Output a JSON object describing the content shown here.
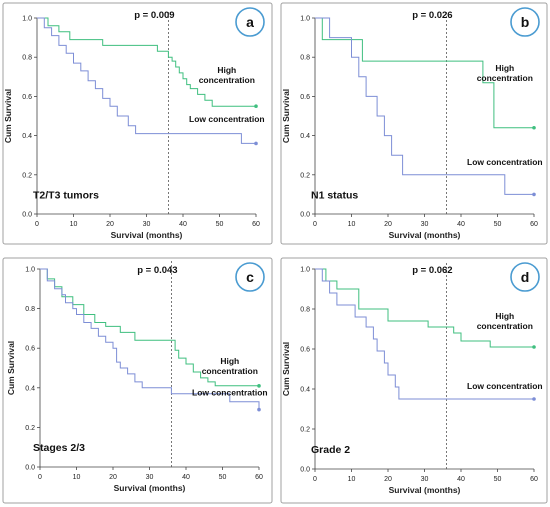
{
  "chart_data": [
    {
      "type": "line",
      "panel_letter": "a",
      "subgroup": "T2/T3 tumors",
      "p_value": "p = 0.009",
      "xlabel": "Survival (months)",
      "ylabel": "Cum Survival",
      "xlim": [
        0,
        60
      ],
      "ylim": [
        0,
        1
      ],
      "xticks": [
        0,
        10,
        20,
        30,
        40,
        50,
        60
      ],
      "yticks": [
        0.0,
        0.2,
        0.4,
        0.6,
        0.8,
        1.0
      ],
      "reference_line_x": 36,
      "series": [
        {
          "name": "High concentration",
          "color": "#3fbf7f",
          "x": [
            0,
            3,
            6,
            9,
            12,
            15,
            18,
            21,
            24,
            27,
            30,
            33,
            36,
            37,
            38,
            39,
            40,
            41,
            42,
            44,
            46,
            48,
            60
          ],
          "y": [
            1.0,
            0.96,
            0.93,
            0.89,
            0.89,
            0.89,
            0.86,
            0.86,
            0.86,
            0.86,
            0.86,
            0.83,
            0.8,
            0.78,
            0.75,
            0.72,
            0.69,
            0.66,
            0.64,
            0.61,
            0.58,
            0.55,
            0.55
          ],
          "label_lines": [
            "High",
            "concentration"
          ]
        },
        {
          "name": "Low concentration",
          "color": "#7d8ed6",
          "x": [
            0,
            2,
            4,
            6,
            8,
            10,
            12,
            14,
            16,
            18,
            20,
            22,
            25,
            27,
            36,
            50,
            56,
            60
          ],
          "y": [
            1.0,
            0.95,
            0.91,
            0.86,
            0.82,
            0.77,
            0.73,
            0.68,
            0.64,
            0.59,
            0.55,
            0.5,
            0.45,
            0.41,
            0.41,
            0.41,
            0.36,
            0.36
          ],
          "label_lines": [
            "Low concentration"
          ]
        }
      ]
    },
    {
      "type": "line",
      "panel_letter": "b",
      "subgroup": "N1 status",
      "p_value": "p = 0.026",
      "xlabel": "Survival (months)",
      "ylabel": "Cum Survival",
      "xlim": [
        0,
        60
      ],
      "ylim": [
        0,
        1
      ],
      "xticks": [
        0,
        10,
        20,
        30,
        40,
        50,
        60
      ],
      "yticks": [
        0.0,
        0.2,
        0.4,
        0.6,
        0.8,
        1.0
      ],
      "reference_line_x": 36,
      "series": [
        {
          "name": "High concentration",
          "color": "#3fbf7f",
          "x": [
            0,
            2,
            10,
            13,
            40,
            46,
            49,
            60
          ],
          "y": [
            1.0,
            0.89,
            0.89,
            0.78,
            0.78,
            0.67,
            0.44,
            0.44
          ],
          "label_lines": [
            "High",
            "concentration"
          ]
        },
        {
          "name": "Low concentration",
          "color": "#7d8ed6",
          "x": [
            0,
            4,
            10,
            12,
            14,
            17,
            19,
            21,
            24,
            52,
            60
          ],
          "y": [
            1.0,
            0.9,
            0.8,
            0.7,
            0.6,
            0.5,
            0.4,
            0.3,
            0.2,
            0.1,
            0.1
          ],
          "label_lines": [
            "Low concentration"
          ]
        }
      ]
    },
    {
      "type": "line",
      "panel_letter": "c",
      "subgroup": "Stages 2/3",
      "p_value": "p = 0.043",
      "xlabel": "Survival (months)",
      "ylabel": "Cum Survival",
      "xlim": [
        0,
        60
      ],
      "ylim": [
        0,
        1
      ],
      "xticks": [
        0,
        10,
        20,
        30,
        40,
        50,
        60
      ],
      "yticks": [
        0.0,
        0.2,
        0.4,
        0.6,
        0.8,
        1.0
      ],
      "reference_line_x": 36,
      "series": [
        {
          "name": "High concentration",
          "color": "#3fbf7f",
          "x": [
            0,
            2,
            4,
            6,
            9,
            12,
            15,
            18,
            22,
            26,
            36,
            37,
            38,
            40,
            42,
            44,
            46,
            48,
            60
          ],
          "y": [
            1.0,
            0.95,
            0.91,
            0.86,
            0.82,
            0.77,
            0.73,
            0.71,
            0.68,
            0.64,
            0.64,
            0.59,
            0.55,
            0.52,
            0.48,
            0.45,
            0.43,
            0.41,
            0.41
          ],
          "label_lines": [
            "High",
            "concentration"
          ]
        },
        {
          "name": "Low concentration",
          "color": "#7d8ed6",
          "x": [
            0,
            2,
            4,
            6,
            7,
            9,
            10,
            12,
            14,
            16,
            18,
            20,
            21,
            22,
            24,
            26,
            28,
            36,
            52,
            60
          ],
          "y": [
            1.0,
            0.94,
            0.9,
            0.87,
            0.83,
            0.8,
            0.77,
            0.73,
            0.7,
            0.66,
            0.63,
            0.6,
            0.53,
            0.5,
            0.47,
            0.43,
            0.4,
            0.37,
            0.33,
            0.29
          ],
          "label_lines": [
            "Low concentration"
          ]
        }
      ]
    },
    {
      "type": "line",
      "panel_letter": "d",
      "subgroup": "Grade 2",
      "p_value": "p = 0.062",
      "xlabel": "Survival (months)",
      "ylabel": "Cum Survival",
      "xlim": [
        0,
        60
      ],
      "ylim": [
        0,
        1
      ],
      "xticks": [
        0,
        10,
        20,
        30,
        40,
        50,
        60
      ],
      "yticks": [
        0.0,
        0.2,
        0.4,
        0.6,
        0.8,
        1.0
      ],
      "reference_line_x": 36,
      "series": [
        {
          "name": "High concentration",
          "color": "#3fbf7f",
          "x": [
            0,
            3,
            6,
            12,
            20,
            31,
            38,
            40,
            48,
            60
          ],
          "y": [
            1.0,
            0.94,
            0.9,
            0.8,
            0.74,
            0.71,
            0.68,
            0.64,
            0.61,
            0.61
          ],
          "label_lines": [
            "High",
            "concentration"
          ]
        },
        {
          "name": "Low concentration",
          "color": "#7d8ed6",
          "x": [
            0,
            2,
            4,
            6,
            9,
            11,
            14,
            16,
            17,
            19,
            20,
            22,
            23,
            25,
            26,
            60
          ],
          "y": [
            1.0,
            0.94,
            0.88,
            0.82,
            0.82,
            0.76,
            0.71,
            0.65,
            0.59,
            0.53,
            0.47,
            0.41,
            0.35,
            0.35,
            0.35,
            0.35
          ],
          "label_lines": [
            "Low concentration"
          ]
        }
      ]
    }
  ]
}
